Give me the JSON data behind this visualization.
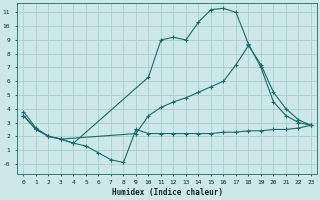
{
  "xlabel": "Humidex (Indice chaleur)",
  "bg_color": "#cde8e8",
  "grid_color": "#a8cece",
  "line_color": "#1a6b6b",
  "xlim": [
    -0.5,
    23.5
  ],
  "ylim": [
    -0.7,
    11.7
  ],
  "xticks": [
    0,
    1,
    2,
    3,
    4,
    5,
    6,
    7,
    8,
    9,
    10,
    11,
    12,
    13,
    14,
    15,
    16,
    17,
    18,
    19,
    20,
    21,
    22,
    23
  ],
  "yticks": [
    0,
    1,
    2,
    3,
    4,
    5,
    6,
    7,
    8,
    9,
    10,
    11
  ],
  "ytick_labels": [
    "-0",
    "1",
    "2",
    "3",
    "4",
    "5",
    "6",
    "7",
    "8",
    "9",
    "10",
    "11"
  ],
  "curve1_x": [
    0,
    1,
    2,
    3,
    4,
    10,
    11,
    12,
    13,
    14,
    15,
    16,
    17,
    18,
    19,
    20,
    21,
    22,
    23
  ],
  "curve1_y": [
    3.8,
    2.6,
    2.0,
    1.8,
    1.5,
    6.3,
    9.0,
    9.2,
    9.0,
    10.3,
    11.2,
    11.3,
    11.0,
    8.7,
    7.0,
    4.5,
    3.5,
    3.0,
    2.8
  ],
  "curve2_x": [
    0,
    1,
    2,
    3,
    9,
    10,
    11,
    12,
    13,
    14,
    15,
    16,
    17,
    18,
    19,
    20,
    21,
    22,
    23
  ],
  "curve2_y": [
    3.5,
    2.5,
    2.0,
    1.8,
    2.2,
    3.5,
    4.1,
    4.5,
    4.8,
    5.2,
    5.6,
    6.0,
    7.2,
    8.6,
    7.2,
    5.2,
    4.0,
    3.2,
    2.8
  ],
  "curve3_x": [
    0,
    1,
    2,
    3,
    4,
    5,
    6,
    7,
    8,
    9,
    10,
    11,
    12,
    13,
    14,
    15,
    16,
    17,
    18,
    19,
    20,
    21,
    22,
    23
  ],
  "curve3_y": [
    3.5,
    2.5,
    2.0,
    1.8,
    1.5,
    1.3,
    0.8,
    0.3,
    0.1,
    2.5,
    2.2,
    2.2,
    2.2,
    2.2,
    2.2,
    2.2,
    2.3,
    2.3,
    2.4,
    2.4,
    2.5,
    2.5,
    2.6,
    2.8
  ]
}
